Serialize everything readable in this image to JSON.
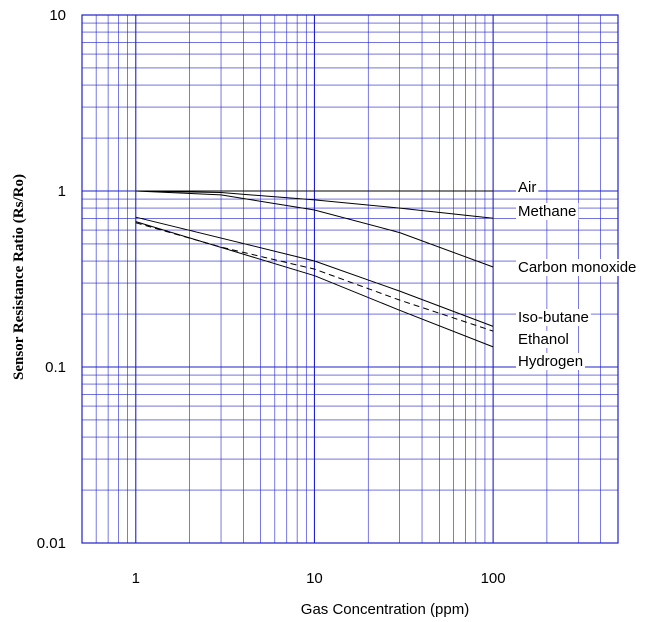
{
  "chart_data": {
    "type": "line",
    "title": "",
    "xlabel": "Gas Concentration (ppm)",
    "ylabel": "Sensor Resistance Ratio (Rs/Ro)",
    "x_scale": "log",
    "y_scale": "log",
    "xlim": [
      0.5,
      500
    ],
    "ylim": [
      0.01,
      10
    ],
    "x_ticks": [
      1,
      10,
      100
    ],
    "x_tick_labels": [
      "1",
      "10",
      "100"
    ],
    "y_ticks": [
      0.01,
      0.1,
      1,
      10
    ],
    "y_tick_labels": [
      "0.01",
      "0.1",
      "1",
      "10"
    ],
    "grid": true,
    "grid_color": "#2020cc",
    "line_color": "#000000",
    "series": [
      {
        "name": "Air",
        "style": "solid",
        "x": [
          1,
          100
        ],
        "y": [
          1.0,
          1.0
        ]
      },
      {
        "name": "Methane",
        "style": "solid",
        "x": [
          1,
          3,
          10,
          30,
          100
        ],
        "y": [
          1.0,
          0.98,
          0.89,
          0.8,
          0.7
        ]
      },
      {
        "name": "Carbon monoxide",
        "style": "solid",
        "x": [
          1,
          3,
          10,
          30,
          100
        ],
        "y": [
          1.0,
          0.95,
          0.78,
          0.58,
          0.37
        ]
      },
      {
        "name": "Iso-butane",
        "style": "solid",
        "x": [
          1,
          10,
          30,
          100
        ],
        "y": [
          0.71,
          0.4,
          0.27,
          0.17
        ]
      },
      {
        "name": "Ethanol",
        "style": "dashed",
        "x": [
          1,
          3,
          10,
          30,
          100
        ],
        "y": [
          0.66,
          0.48,
          0.36,
          0.24,
          0.16
        ]
      },
      {
        "name": "Hydrogen",
        "style": "solid",
        "x": [
          1,
          10,
          30,
          100
        ],
        "y": [
          0.67,
          0.33,
          0.21,
          0.13
        ]
      }
    ]
  }
}
